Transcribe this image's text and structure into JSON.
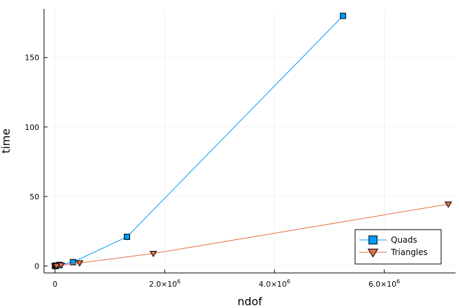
{
  "chart_data": {
    "type": "line",
    "title": "",
    "xlabel": "ndof",
    "ylabel": "time",
    "xlim": [
      -200000,
      7300000
    ],
    "ylim": [
      -5,
      185
    ],
    "x_ticks": [
      {
        "value": 0,
        "base": "0",
        "exp": ""
      },
      {
        "value": 2000000,
        "base": "2.0×10",
        "exp": "6"
      },
      {
        "value": 4000000,
        "base": "4.0×10",
        "exp": "6"
      },
      {
        "value": 6000000,
        "base": "6.0×10",
        "exp": "6"
      }
    ],
    "y_ticks": [
      0,
      50,
      100,
      150
    ],
    "grid": true,
    "legend_position": "bottom-right",
    "series": [
      {
        "name": "Quads",
        "color": "#009AFA",
        "marker": "square",
        "x": [
          0,
          4000,
          20000,
          82000,
          328000,
          1312000,
          5248000
        ],
        "y": [
          0.02,
          0.1,
          0.3,
          0.8,
          2.8,
          21,
          180
        ]
      },
      {
        "name": "Triangles",
        "color": "#E26F46",
        "marker": "triangle-down",
        "x": [
          0,
          7000,
          28000,
          112000,
          448000,
          1792000,
          7168000
        ],
        "y": [
          0.02,
          0.1,
          0.2,
          0.6,
          2.2,
          9,
          44.5
        ]
      }
    ]
  }
}
